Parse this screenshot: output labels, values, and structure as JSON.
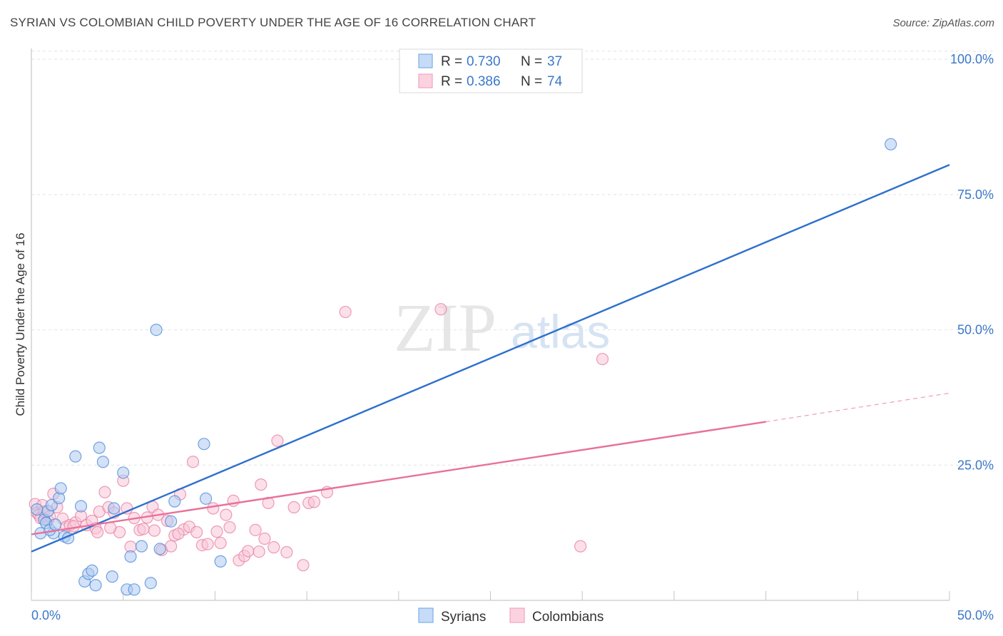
{
  "title": "SYRIAN VS COLOMBIAN CHILD POVERTY UNDER THE AGE OF 16 CORRELATION CHART",
  "source": "Source: ZipAtlas.com",
  "watermark": {
    "part1": "ZIP",
    "part2": "atlas"
  },
  "legend": {
    "rows": [
      {
        "r_label": "R =",
        "r_value": "0.730",
        "n_label": "N =",
        "n_value": "37",
        "color": "#7aaee8"
      },
      {
        "r_label": "R =",
        "r_value": "0.386",
        "n_label": "N =",
        "n_value": "74",
        "color": "#f4a3bf"
      }
    ]
  },
  "bottom_legend": [
    {
      "label": "Syrians",
      "color": "#7aaee8"
    },
    {
      "label": "Colombians",
      "color": "#f4a3bf"
    }
  ],
  "chart_data": {
    "type": "scatter",
    "title": "SYRIAN VS COLOMBIAN CHILD POVERTY UNDER THE AGE OF 16 CORRELATION CHART",
    "xlabel": "",
    "ylabel": "Child Poverty Under the Age of 16",
    "xlim": [
      0,
      50
    ],
    "ylim": [
      0,
      102
    ],
    "x_tick_labels": [
      "0.0%",
      "50.0%"
    ],
    "y_ticks": [
      25,
      50,
      75,
      100
    ],
    "y_tick_labels": [
      "25.0%",
      "50.0%",
      "75.0%",
      "100.0%"
    ],
    "grid": "horizontal dashed",
    "legend_position": "top-center",
    "series": [
      {
        "name": "Syrians",
        "color": "#4a86d8",
        "fill": "#aecbf0",
        "points": [
          [
            0.3,
            16.8
          ],
          [
            0.5,
            12.4
          ],
          [
            0.7,
            14.9
          ],
          [
            0.8,
            14.3
          ],
          [
            0.9,
            16.5
          ],
          [
            1.1,
            17.6
          ],
          [
            1.2,
            12.4
          ],
          [
            1.5,
            18.9
          ],
          [
            1.6,
            20.7
          ],
          [
            1.8,
            11.8
          ],
          [
            2.0,
            11.5
          ],
          [
            2.4,
            26.6
          ],
          [
            2.7,
            17.4
          ],
          [
            2.9,
            3.5
          ],
          [
            3.1,
            4.9
          ],
          [
            3.3,
            5.5
          ],
          [
            3.5,
            2.8
          ],
          [
            3.7,
            28.2
          ],
          [
            3.9,
            25.6
          ],
          [
            4.5,
            17.0
          ],
          [
            5.0,
            23.6
          ],
          [
            5.2,
            2.0
          ],
          [
            5.4,
            8.1
          ],
          [
            6.0,
            10.0
          ],
          [
            6.5,
            3.2
          ],
          [
            6.8,
            50.0
          ],
          [
            7.0,
            9.5
          ],
          [
            7.6,
            14.6
          ],
          [
            7.8,
            18.3
          ],
          [
            9.4,
            28.9
          ],
          [
            9.5,
            18.8
          ],
          [
            10.3,
            7.2
          ],
          [
            1.0,
            13.0
          ],
          [
            1.3,
            14.0
          ],
          [
            4.4,
            4.4
          ],
          [
            5.6,
            2.0
          ],
          [
            46.8,
            84.3
          ]
        ]
      },
      {
        "name": "Colombians",
        "color": "#e87ba0",
        "fill": "#f8c6d7",
        "points": [
          [
            0.2,
            17.8
          ],
          [
            0.3,
            16.2
          ],
          [
            0.4,
            15.8
          ],
          [
            0.5,
            15.2
          ],
          [
            0.6,
            17.6
          ],
          [
            0.7,
            16.4
          ],
          [
            0.9,
            14.8
          ],
          [
            1.2,
            19.7
          ],
          [
            1.4,
            17.2
          ],
          [
            1.7,
            15.1
          ],
          [
            1.9,
            13.6
          ],
          [
            2.1,
            13.9
          ],
          [
            2.4,
            14.4
          ],
          [
            2.7,
            15.6
          ],
          [
            3.0,
            13.9
          ],
          [
            3.3,
            14.7
          ],
          [
            3.5,
            13.3
          ],
          [
            3.7,
            16.4
          ],
          [
            4.0,
            20.0
          ],
          [
            4.2,
            17.2
          ],
          [
            4.5,
            16.2
          ],
          [
            4.8,
            12.6
          ],
          [
            5.0,
            22.1
          ],
          [
            5.2,
            17.0
          ],
          [
            5.4,
            9.9
          ],
          [
            5.6,
            15.2
          ],
          [
            5.9,
            13.0
          ],
          [
            6.1,
            13.2
          ],
          [
            6.3,
            15.3
          ],
          [
            6.6,
            17.3
          ],
          [
            6.9,
            15.8
          ],
          [
            7.1,
            9.3
          ],
          [
            7.4,
            14.7
          ],
          [
            7.6,
            10.0
          ],
          [
            7.8,
            12.0
          ],
          [
            8.1,
            19.6
          ],
          [
            8.3,
            13.1
          ],
          [
            8.6,
            13.6
          ],
          [
            8.8,
            25.6
          ],
          [
            9.0,
            12.6
          ],
          [
            9.3,
            10.2
          ],
          [
            9.6,
            10.4
          ],
          [
            9.9,
            17.0
          ],
          [
            10.1,
            12.7
          ],
          [
            10.3,
            10.6
          ],
          [
            10.6,
            15.8
          ],
          [
            10.8,
            13.5
          ],
          [
            11.0,
            18.4
          ],
          [
            11.3,
            7.4
          ],
          [
            11.6,
            8.2
          ],
          [
            11.8,
            9.1
          ],
          [
            12.2,
            13.0
          ],
          [
            12.5,
            21.4
          ],
          [
            12.7,
            11.4
          ],
          [
            12.9,
            18.0
          ],
          [
            13.2,
            9.8
          ],
          [
            13.4,
            29.5
          ],
          [
            13.9,
            8.9
          ],
          [
            14.3,
            17.2
          ],
          [
            14.8,
            6.5
          ],
          [
            15.1,
            18.0
          ],
          [
            15.4,
            18.2
          ],
          [
            16.1,
            20.0
          ],
          [
            17.1,
            53.3
          ],
          [
            22.3,
            53.8
          ],
          [
            31.1,
            44.6
          ],
          [
            29.9,
            10.0
          ],
          [
            2.3,
            13.7
          ],
          [
            4.3,
            13.4
          ],
          [
            6.7,
            12.9
          ],
          [
            3.6,
            12.6
          ],
          [
            1.0,
            15.5
          ],
          [
            8.0,
            12.3
          ],
          [
            12.4,
            9.0
          ]
        ]
      }
    ],
    "trend_lines": [
      {
        "series": "Syrians",
        "x": [
          0.0,
          50.0
        ],
        "y": [
          9.0,
          80.5
        ],
        "color": "#2e6fce"
      },
      {
        "series": "Colombians",
        "x": [
          0.0,
          40.0
        ],
        "y": [
          12.2,
          33.0
        ],
        "color": "#e8709a",
        "dashed_extension_x": [
          40.0,
          50.0
        ],
        "dashed_extension_y": [
          33.0,
          38.3
        ]
      }
    ]
  }
}
